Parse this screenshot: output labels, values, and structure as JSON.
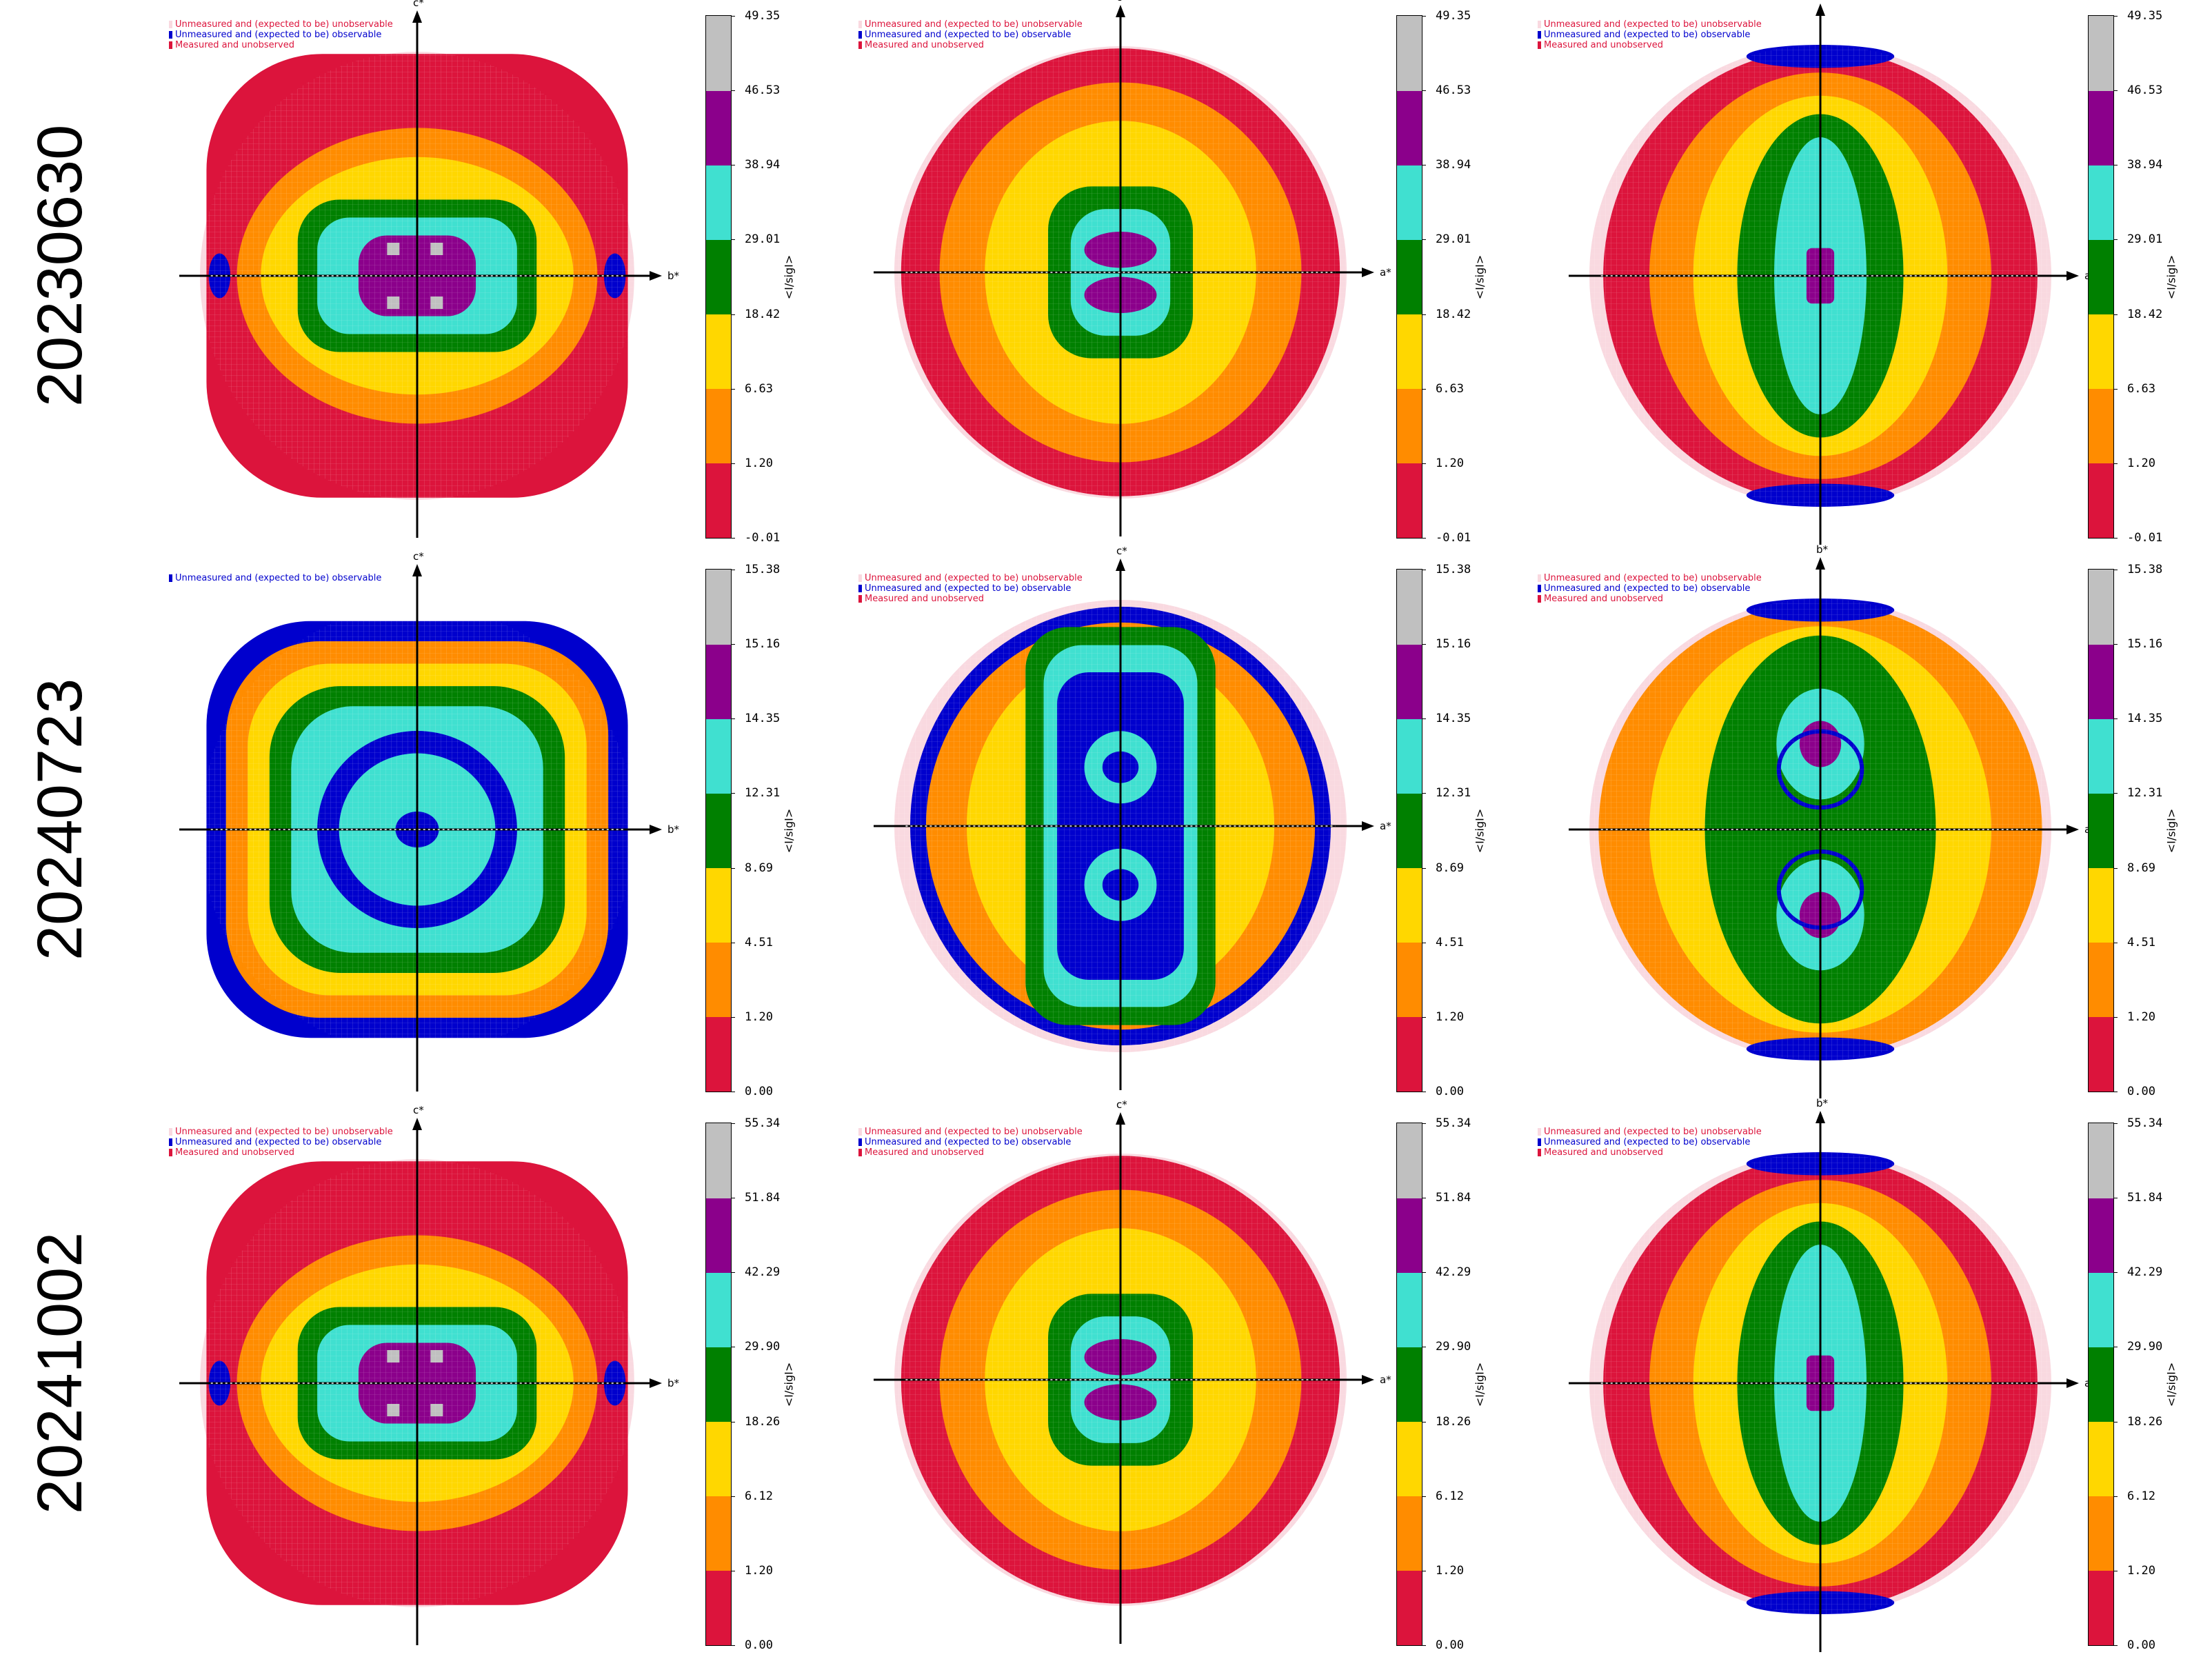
{
  "colors": {
    "bins": [
      "#dc143c",
      "#ff8c00",
      "#ffd700",
      "#008000",
      "#40e0d0",
      "#8b008b",
      "#c0c0c0"
    ],
    "unmeasured_unobservable": "#f9d9e0",
    "unmeasured_observable": "#0000cd",
    "measured_unobserved": "#dc143c"
  },
  "legend_texts": {
    "unobservable": "Unmeasured and (expected to be) unobservable",
    "observable": "Unmeasured and (expected to be) observable",
    "unobserved": "Measured and unobserved"
  },
  "colorbar_label": "<I/sigI>",
  "rows": [
    {
      "label": "20230630",
      "ticks": [
        "-0.01",
        "1.20",
        "6.63",
        "18.42",
        "29.01",
        "38.94",
        "46.53",
        "49.35"
      ],
      "panels": [
        {
          "v_axis": "c*",
          "h_axis": "b*",
          "pattern": "b_c",
          "legend": [
            "unobservable",
            "observable",
            "unobserved"
          ]
        },
        {
          "v_axis": "c*",
          "h_axis": "a*",
          "pattern": "a_c",
          "legend": [
            "unobservable",
            "observable",
            "unobserved"
          ]
        },
        {
          "v_axis": "b*",
          "h_axis": "a*",
          "pattern": "a_b",
          "legend": [
            "unobservable",
            "observable",
            "unobserved"
          ]
        }
      ]
    },
    {
      "label": "20240723",
      "ticks": [
        "0.00",
        "1.20",
        "4.51",
        "8.69",
        "12.31",
        "14.35",
        "15.16",
        "15.38"
      ],
      "panels": [
        {
          "v_axis": "c*",
          "h_axis": "b*",
          "pattern": "b_c_low",
          "legend": [
            "observable"
          ]
        },
        {
          "v_axis": "c*",
          "h_axis": "a*",
          "pattern": "a_c_low",
          "legend": [
            "unobservable",
            "observable",
            "unobserved"
          ]
        },
        {
          "v_axis": "b*",
          "h_axis": "a*",
          "pattern": "a_b_low",
          "legend": [
            "unobservable",
            "observable",
            "unobserved"
          ]
        }
      ]
    },
    {
      "label": "20241002",
      "ticks": [
        "0.00",
        "1.20",
        "6.12",
        "18.26",
        "29.90",
        "42.29",
        "51.84",
        "55.34"
      ],
      "panels": [
        {
          "v_axis": "c*",
          "h_axis": "b*",
          "pattern": "b_c",
          "legend": [
            "unobservable",
            "observable",
            "unobserved"
          ]
        },
        {
          "v_axis": "c*",
          "h_axis": "a*",
          "pattern": "a_c",
          "legend": [
            "unobservable",
            "observable",
            "unobserved"
          ]
        },
        {
          "v_axis": "b*",
          "h_axis": "a*",
          "pattern": "a_b",
          "legend": [
            "unobservable",
            "observable",
            "unobserved"
          ]
        }
      ]
    }
  ],
  "chart_data": {
    "type": "heatmap",
    "series_description": [],
    "colorbar_label": "<I/sigI>",
    "bin_colors": [
      "crimson",
      "orange",
      "gold",
      "green",
      "turquoise",
      "purple",
      "silver"
    ],
    "datasets": [
      {
        "name": "20230630",
        "bin_edges": [
          -0.01,
          1.2,
          6.63,
          18.42,
          29.01,
          38.94,
          46.53,
          49.35
        ],
        "views": [
          "b*-c*",
          "a*-c*",
          "a*-b*"
        ]
      },
      {
        "name": "20240723",
        "bin_edges": [
          0.0,
          1.2,
          4.51,
          8.69,
          12.31,
          14.35,
          15.16,
          15.38
        ],
        "views": [
          "b*-c*",
          "a*-c*",
          "a*-b*"
        ]
      },
      {
        "name": "20241002",
        "bin_edges": [
          0.0,
          1.2,
          6.12,
          18.26,
          29.9,
          42.29,
          51.84,
          55.34
        ],
        "views": [
          "b*-c*",
          "a*-c*",
          "a*-b*"
        ]
      }
    ]
  }
}
